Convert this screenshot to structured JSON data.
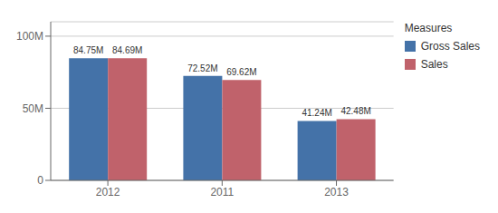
{
  "chart_data": {
    "type": "bar",
    "categories": [
      "2012",
      "2011",
      "2013"
    ],
    "series": [
      {
        "name": "Gross Sales",
        "color": "#4472a8",
        "values": [
          84.75,
          72.52,
          41.24
        ],
        "value_labels": [
          "84.75M",
          "72.52M",
          "41.24M"
        ]
      },
      {
        "name": "Sales",
        "color": "#c0626b",
        "values": [
          84.69,
          69.62,
          42.48
        ],
        "value_labels": [
          "84.69M",
          "69.62M",
          "42.48M"
        ]
      }
    ],
    "ylim": [
      0,
      110
    ],
    "yticks": [
      0,
      {
        "value": 50,
        "label": "50M"
      },
      {
        "value": 100,
        "label": "100M"
      }
    ],
    "grid": true,
    "data_labels": true,
    "legend_title": "Measures",
    "legend": "upper right"
  }
}
